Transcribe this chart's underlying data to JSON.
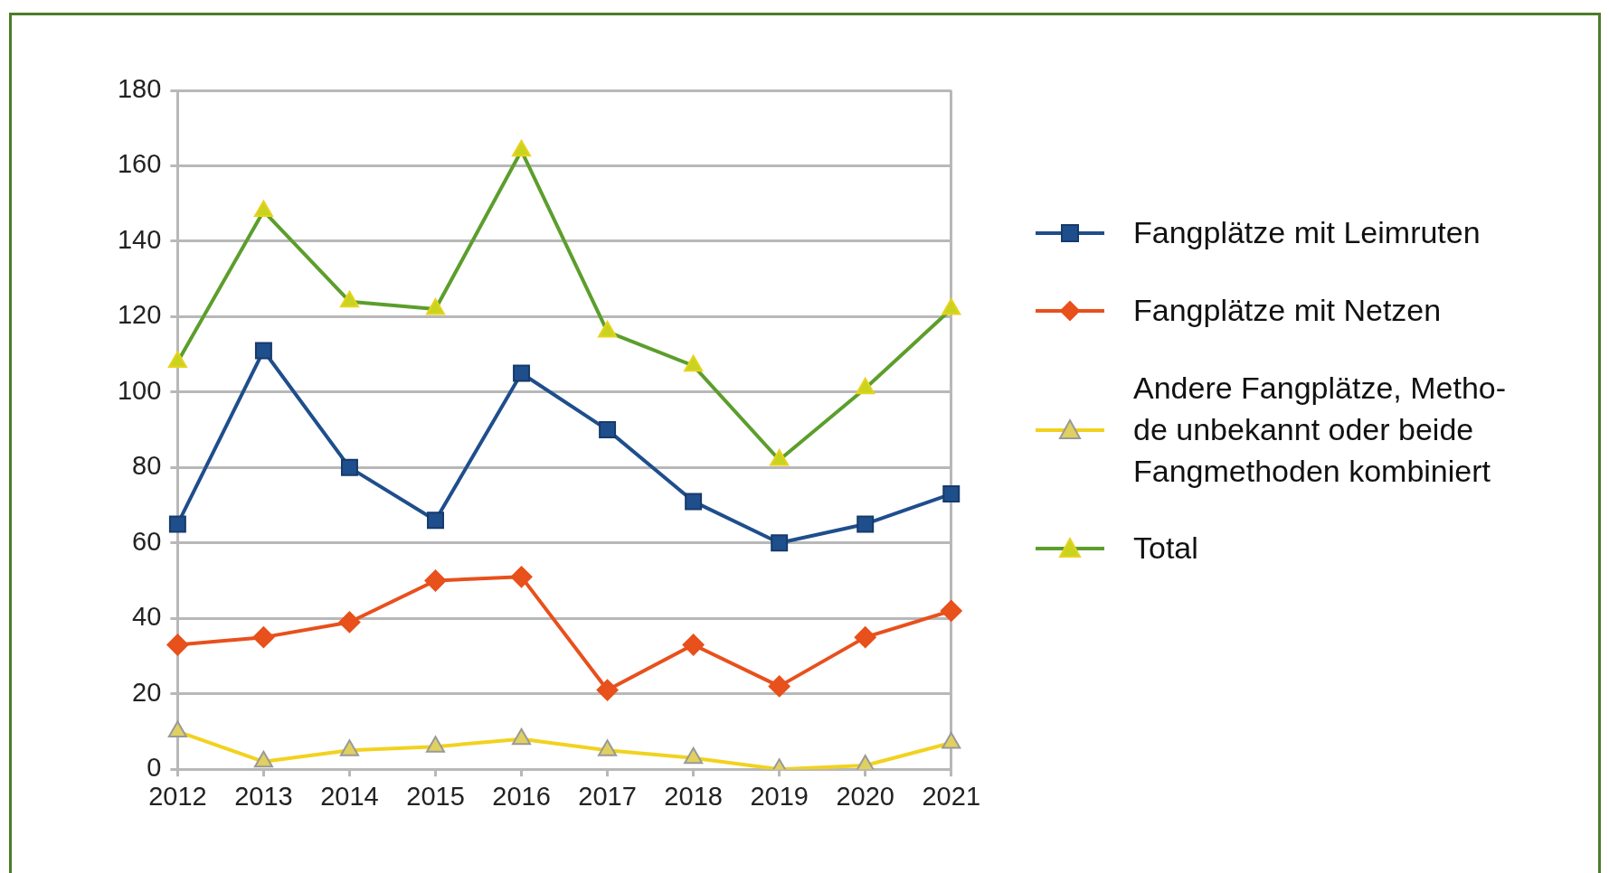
{
  "chart_data": {
    "type": "line",
    "categories": [
      "2012",
      "2013",
      "2014",
      "2015",
      "2016",
      "2017",
      "2018",
      "2019",
      "2020",
      "2021"
    ],
    "series": [
      {
        "name": "Fangplätze mit Leimruten",
        "color": "#1f4e8c",
        "marker": "square",
        "values": [
          65,
          111,
          80,
          66,
          105,
          90,
          71,
          60,
          65,
          73
        ]
      },
      {
        "name": "Fangplätze mit Netzen",
        "color": "#e8501c",
        "marker": "diamond",
        "values": [
          33,
          35,
          39,
          50,
          51,
          21,
          33,
          22,
          35,
          42
        ]
      },
      {
        "name": "Andere Fangplätze, Metho-\nde unbekannt oder beide\nFangmethoden kombiniert",
        "color": "#f2d21e",
        "marker": "triangle",
        "values": [
          10,
          2,
          5,
          6,
          8,
          5,
          3,
          0,
          1,
          7
        ]
      },
      {
        "name": "Total",
        "color": "#5c9e2c",
        "marker": "triangle",
        "values": [
          108,
          148,
          124,
          122,
          164,
          116,
          107,
          82,
          101,
          122
        ]
      }
    ],
    "ylim": [
      0,
      180
    ],
    "yticks": [
      0,
      20,
      40,
      60,
      80,
      100,
      120,
      140,
      160,
      180
    ],
    "grid": "y",
    "legend": "right"
  }
}
